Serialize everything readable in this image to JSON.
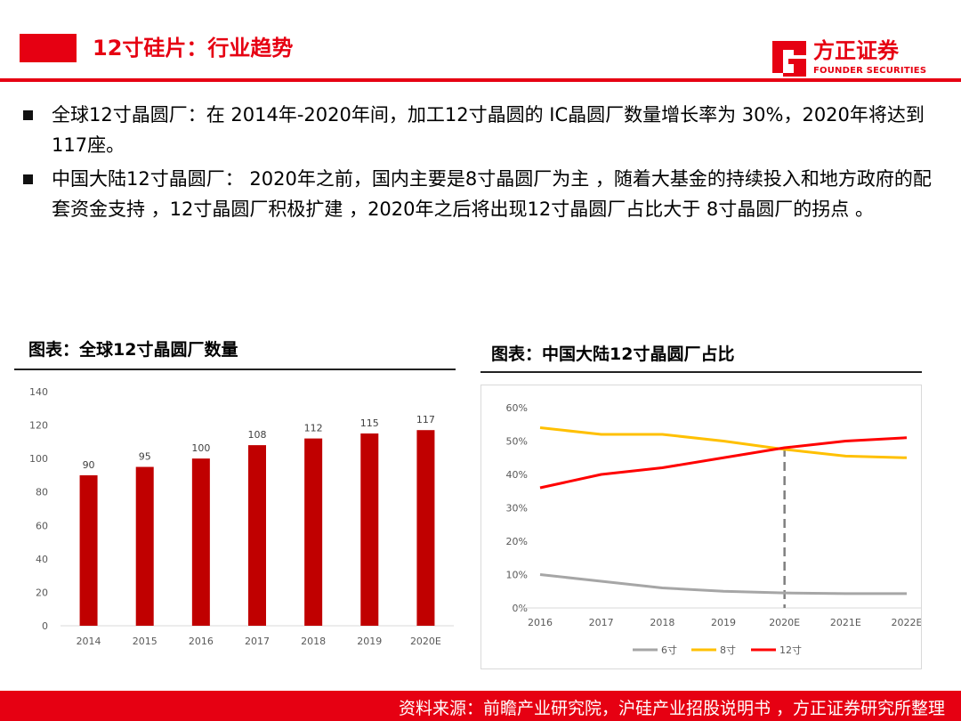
{
  "header": {
    "title": "12寸硅片：行业趋势",
    "logo_cn": "方正证券",
    "logo_en": "FOUNDER SECURITIES"
  },
  "bullets": [
    {
      "text": "全球12寸晶圆厂：在 2014年-2020年间，加工12寸晶圆的 IC晶圆厂数量增长率为 30%，2020年将达到117座。"
    },
    {
      "text": "中国大陆12寸晶圆厂： 2020年之前，国内主要是8寸晶圆厂为主 ，随着大基金的持续投入和地方政府的配套资金支持 ，12寸晶圆厂积极扩建 ，2020年之后将出现12寸晶圆厂占比大于 8寸晶圆厂的拐点 。"
    }
  ],
  "charts": {
    "left_title": "图表：全球12寸晶圆厂数量",
    "right_title": "图表：中国大陆12寸晶圆厂占比"
  },
  "colors": {
    "brand_red": "#e60012",
    "bar": "#c00000",
    "s6": "#a6a6a6",
    "s8": "#ffc000",
    "s12": "#ff0000"
  },
  "chart_data": [
    {
      "type": "bar",
      "categories": [
        "2014",
        "2015",
        "2016",
        "2017",
        "2018",
        "2019",
        "2020E"
      ],
      "values": [
        90,
        95,
        100,
        108,
        112,
        115,
        117
      ],
      "ylim": [
        0,
        140
      ],
      "yticks": [
        "0",
        "20",
        "40",
        "60",
        "80",
        "100",
        "120",
        "140"
      ],
      "grid": false
    },
    {
      "type": "line",
      "categories": [
        "2016",
        "2017",
        "2018",
        "2019",
        "2020E",
        "2021E",
        "2022E"
      ],
      "series": [
        {
          "name": "6寸",
          "values": [
            10,
            8,
            6,
            5,
            4.5,
            4.3,
            4.3
          ]
        },
        {
          "name": "8寸",
          "values": [
            54,
            52,
            52,
            50,
            47.5,
            45.5,
            45
          ]
        },
        {
          "name": "12寸",
          "values": [
            36,
            40,
            42,
            45,
            48,
            50,
            51
          ]
        }
      ],
      "ylim": [
        0,
        60
      ],
      "yticks": [
        "0%",
        "10%",
        "20%",
        "30%",
        "40%",
        "50%",
        "60%"
      ],
      "legend": "bottom",
      "annotation": "dashed vertical line at 2020E",
      "grid": false
    }
  ],
  "footer": {
    "source": "资料来源：前瞻产业研究院，沪硅产业招股说明书 ，方正证券研究所整理"
  }
}
